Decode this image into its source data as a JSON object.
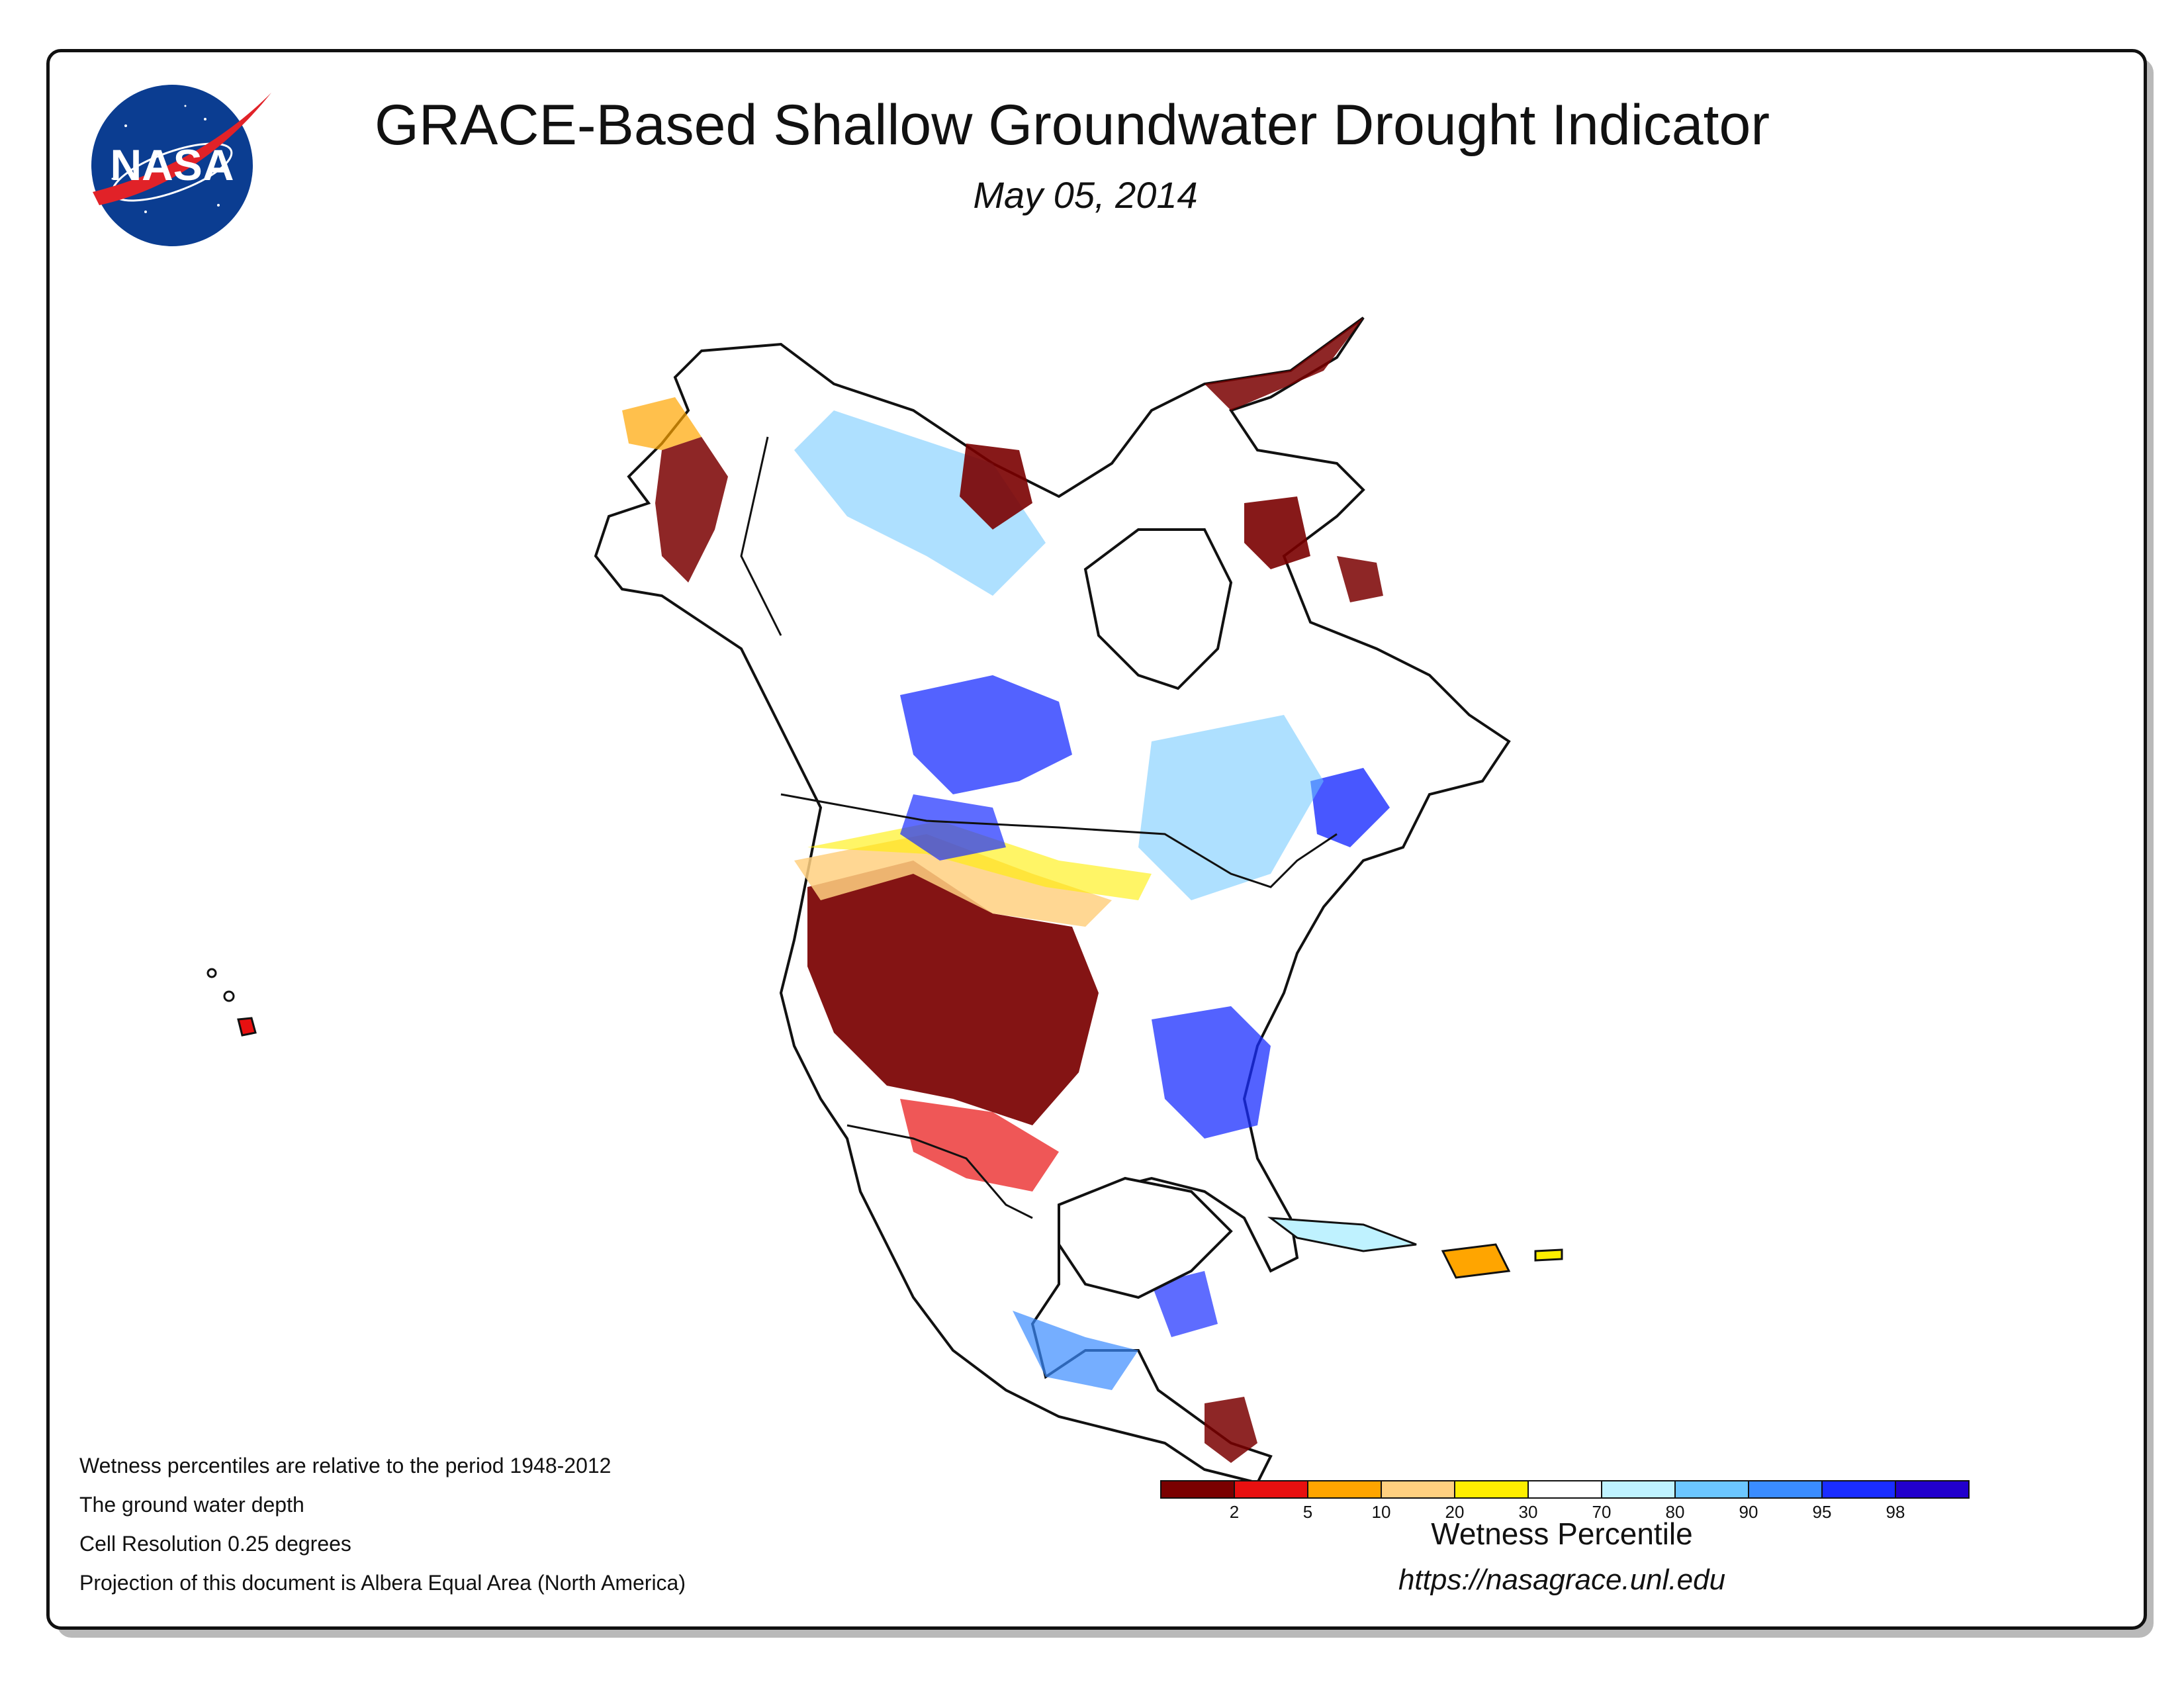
{
  "header": {
    "title": "GRACE-Based Shallow Groundwater Drought Indicator",
    "date": "May 05, 2014",
    "logo_text": "NASA"
  },
  "notes": [
    "Wetness percentiles are relative to the period 1948-2012",
    "The ground water depth",
    "Cell Resolution 0.25 degrees",
    "Projection of this document is Albera Equal Area (North America)"
  ],
  "legend": {
    "title": "Wetness Percentile",
    "colors": [
      "#7a0000",
      "#e81010",
      "#ffa500",
      "#ffd080",
      "#ffee00",
      "#ffffff",
      "#bff2ff",
      "#6cc6ff",
      "#3a8cff",
      "#1a2dff",
      "#2200cc"
    ],
    "tick_labels": [
      "2",
      "5",
      "10",
      "20",
      "30",
      "70",
      "80",
      "90",
      "95",
      "98"
    ]
  },
  "footer": {
    "url": "https://nasagrace.unl.edu"
  }
}
